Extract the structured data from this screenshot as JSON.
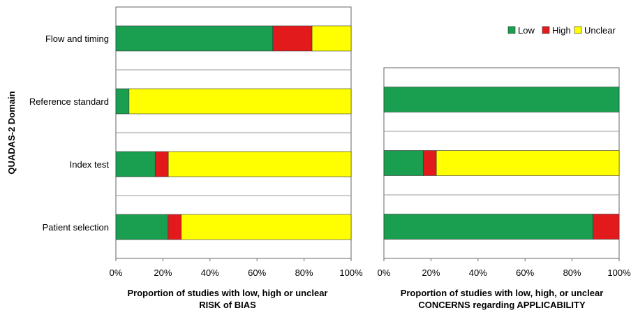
{
  "colors": {
    "low": "#1a9e4f",
    "high": "#e31a1c",
    "unclear": "#ffff00",
    "grid": "#9a9a9a",
    "axis": "#666666"
  },
  "legend": {
    "items": [
      {
        "key": "low",
        "label": "Low"
      },
      {
        "key": "high",
        "label": "High"
      },
      {
        "key": "unclear",
        "label": "Unclear"
      }
    ]
  },
  "chart_data": [
    {
      "type": "bar",
      "stacked": true,
      "orientation": "horizontal",
      "ylabel": "QUADAS-2 Domain",
      "xlabel_line1": "Proportion of studies with low, high or unclear",
      "xlabel_line2": "RISK of BIAS",
      "xlim": [
        0,
        100
      ],
      "ticks": [
        "0%",
        "20%",
        "40%",
        "60%",
        "80%",
        "100%"
      ],
      "categories": [
        "Flow and timing",
        "Reference standard",
        "Index test",
        "Patient selection"
      ],
      "series": [
        {
          "key": "low",
          "name": "Low",
          "values": [
            66.7,
            5.6,
            16.7,
            22.2
          ]
        },
        {
          "key": "high",
          "name": "High",
          "values": [
            16.7,
            0,
            5.6,
            5.6
          ]
        },
        {
          "key": "unclear",
          "name": "Unclear",
          "values": [
            16.6,
            94.4,
            77.7,
            72.2
          ]
        }
      ]
    },
    {
      "type": "bar",
      "stacked": true,
      "orientation": "horizontal",
      "xlabel_line1": "Proportion of studies with low, high, or unclear",
      "xlabel_line2": "CONCERNS regarding APPLICABILITY",
      "xlim": [
        0,
        100
      ],
      "ticks": [
        "0%",
        "20%",
        "40%",
        "60%",
        "80%",
        "100%"
      ],
      "categories": [
        "Reference standard",
        "Index test",
        "Patient selection"
      ],
      "series": [
        {
          "key": "low",
          "name": "Low",
          "values": [
            100,
            16.7,
            88.9
          ]
        },
        {
          "key": "high",
          "name": "High",
          "values": [
            0,
            5.6,
            11.1
          ]
        },
        {
          "key": "unclear",
          "name": "Unclear",
          "values": [
            0,
            77.7,
            0
          ]
        }
      ]
    }
  ]
}
